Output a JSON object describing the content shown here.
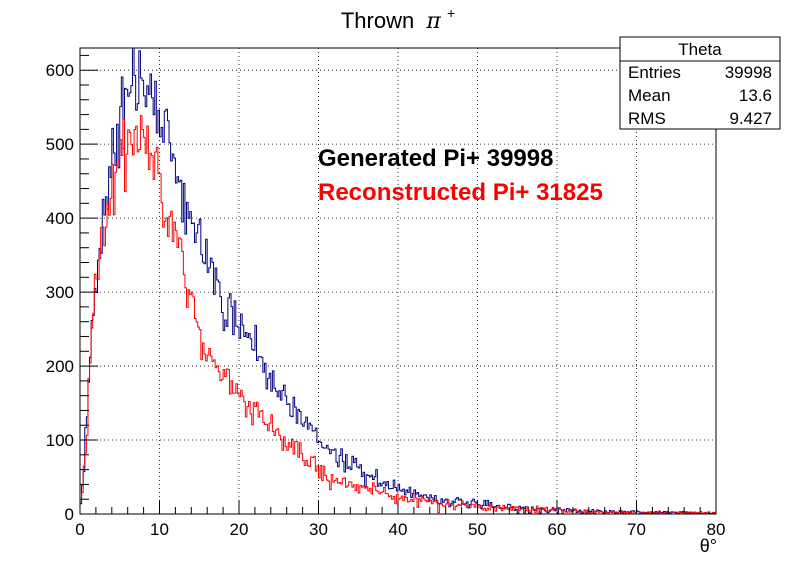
{
  "chart_data": {
    "type": "histogram",
    "title": "Thrown",
    "title_math": "π",
    "title_sup": "+",
    "xlabel": "θ°",
    "ylabel": "",
    "xlim": [
      0,
      80
    ],
    "ylim": [
      0,
      630
    ],
    "x_ticks": [
      0,
      10,
      20,
      30,
      40,
      50,
      60,
      70,
      80
    ],
    "y_ticks": [
      0,
      100,
      200,
      300,
      400,
      500,
      600
    ],
    "grid": true,
    "stats_box": {
      "title": "Theta",
      "rows": [
        {
          "label": "Entries",
          "value": "39998"
        },
        {
          "label": "Mean",
          "value": "13.6"
        },
        {
          "label": "RMS",
          "value": "9.427"
        }
      ]
    },
    "annotations": [
      {
        "text": "Generated Pi+ 39998",
        "color": "#000000"
      },
      {
        "text": "Reconstructed Pi+ 31825",
        "color": "#ff0000"
      }
    ],
    "bin_width": 0.2,
    "series": [
      {
        "color": "#000080",
        "control_points": [
          [
            0,
            10
          ],
          [
            0.4,
            50
          ],
          [
            1,
            150
          ],
          [
            1.6,
            280
          ],
          [
            2,
            320
          ],
          [
            3,
            400
          ],
          [
            4,
            480
          ],
          [
            5,
            540
          ],
          [
            6,
            580
          ],
          [
            7,
            590
          ],
          [
            8,
            590
          ],
          [
            9,
            560
          ],
          [
            10,
            530
          ],
          [
            11,
            500
          ],
          [
            12,
            460
          ],
          [
            13,
            420
          ],
          [
            14,
            390
          ],
          [
            15,
            360
          ],
          [
            16,
            340
          ],
          [
            17,
            320
          ],
          [
            18,
            290
          ],
          [
            20,
            260
          ],
          [
            22,
            220
          ],
          [
            24,
            185
          ],
          [
            26,
            150
          ],
          [
            28,
            125
          ],
          [
            30,
            100
          ],
          [
            32,
            80
          ],
          [
            35,
            60
          ],
          [
            38,
            42
          ],
          [
            40,
            33
          ],
          [
            45,
            20
          ],
          [
            50,
            12
          ],
          [
            55,
            8
          ],
          [
            60,
            5
          ],
          [
            65,
            3
          ],
          [
            70,
            2
          ],
          [
            75,
            2
          ],
          [
            80,
            1
          ]
        ]
      },
      {
        "color": "#ff0000",
        "control_points": [
          [
            0,
            5
          ],
          [
            0.4,
            40
          ],
          [
            1,
            140
          ],
          [
            1.6,
            260
          ],
          [
            2,
            310
          ],
          [
            3,
            380
          ],
          [
            4,
            440
          ],
          [
            5,
            480
          ],
          [
            6,
            500
          ],
          [
            7,
            510
          ],
          [
            8,
            505
          ],
          [
            9,
            490
          ],
          [
            10,
            460
          ],
          [
            11,
            420
          ],
          [
            12,
            380
          ],
          [
            13,
            330
          ],
          [
            14,
            290
          ],
          [
            15,
            250
          ],
          [
            16,
            220
          ],
          [
            17,
            200
          ],
          [
            18,
            180
          ],
          [
            20,
            160
          ],
          [
            22,
            140
          ],
          [
            24,
            120
          ],
          [
            26,
            95
          ],
          [
            28,
            75
          ],
          [
            30,
            60
          ],
          [
            32,
            48
          ],
          [
            35,
            38
          ],
          [
            38,
            28
          ],
          [
            40,
            22
          ],
          [
            45,
            15
          ],
          [
            50,
            10
          ],
          [
            55,
            7
          ],
          [
            60,
            5
          ],
          [
            65,
            3
          ],
          [
            70,
            2
          ],
          [
            75,
            2
          ],
          [
            80,
            1
          ]
        ]
      }
    ]
  }
}
